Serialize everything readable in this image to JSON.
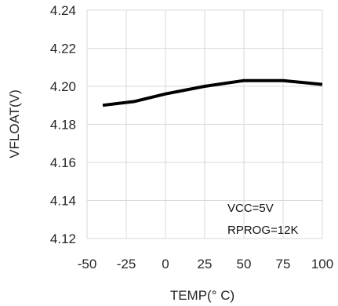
{
  "chart_data": {
    "type": "line",
    "xlabel": "TEMP(° C)",
    "ylabel": "VFLOAT(V)",
    "xlim": [
      -50,
      100
    ],
    "ylim": [
      4.12,
      4.24
    ],
    "x_ticks": [
      -50,
      -25,
      0,
      25,
      50,
      75,
      100
    ],
    "x_tick_labels": [
      "-50",
      "-25",
      "0",
      "25",
      "50",
      "75",
      "100"
    ],
    "y_ticks": [
      4.12,
      4.14,
      4.16,
      4.18,
      4.2,
      4.22,
      4.24
    ],
    "y_tick_labels": [
      "4.12",
      "4.14",
      "4.16",
      "4.18",
      "4.20",
      "4.22",
      "4.24"
    ],
    "grid": {
      "x": true,
      "y": true
    },
    "series": [
      {
        "x": [
          -40,
          -20,
          0,
          25,
          50,
          75,
          100
        ],
        "y": [
          4.19,
          4.192,
          4.196,
          4.2,
          4.203,
          4.203,
          4.201
        ],
        "color": "#000000"
      }
    ],
    "annotations": [
      "VCC=5V",
      "RPROG=12K"
    ],
    "colors": {
      "grid": "#d9d9d9",
      "line": "#000000",
      "text": "#262626"
    }
  }
}
